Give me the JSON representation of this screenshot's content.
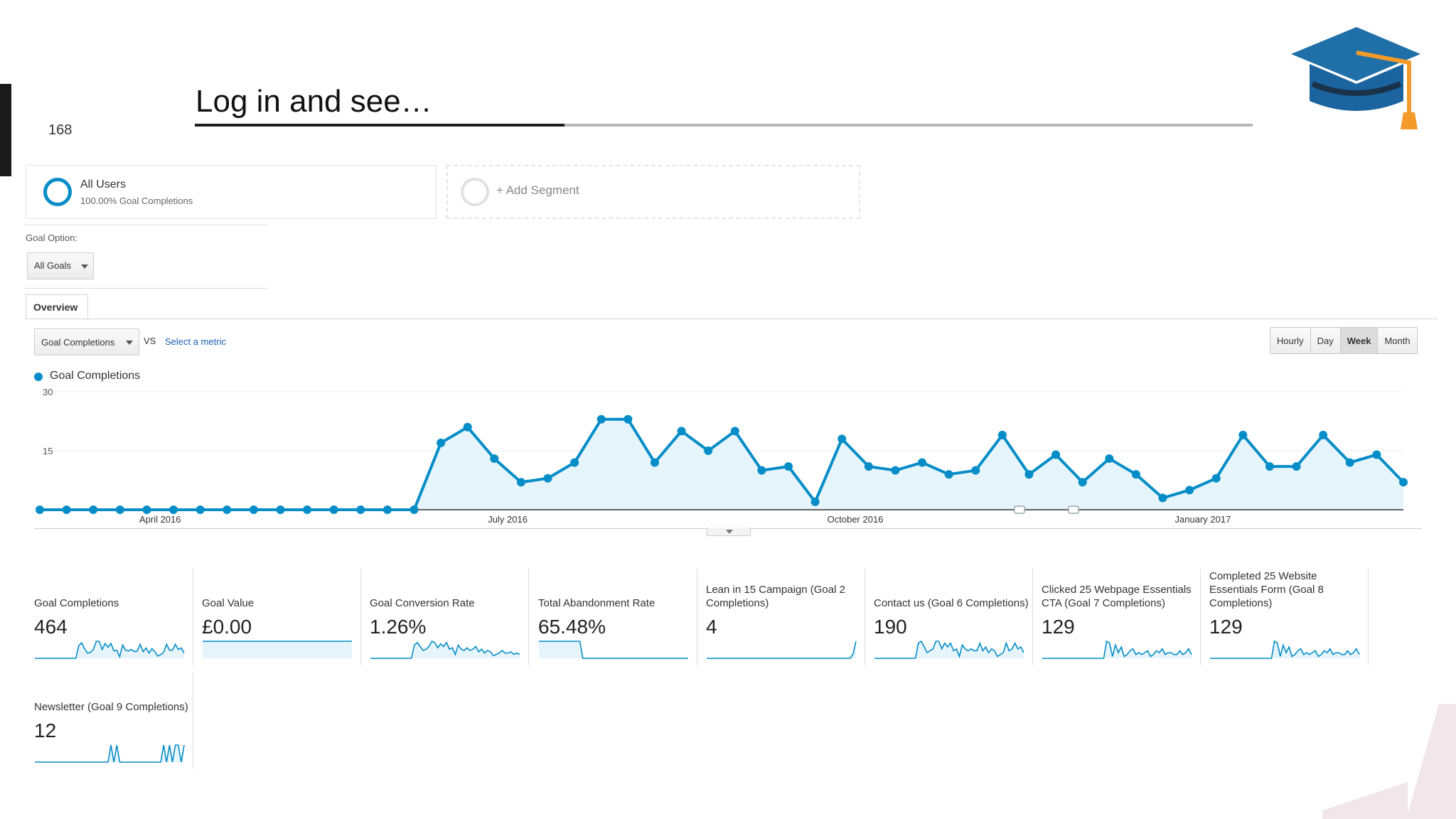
{
  "slide": {
    "number": "168",
    "title": "Log in and see…"
  },
  "segments": {
    "all_users": {
      "name": "All Users",
      "sub": "100.00% Goal Completions"
    },
    "add_segment": "+ Add Segment"
  },
  "goal_option": {
    "label": "Goal Option:",
    "selected": "All Goals"
  },
  "tabs": [
    "Overview"
  ],
  "metric_selector": {
    "selected": "Goal Completions",
    "vs": "VS",
    "select_metric": "Select a metric"
  },
  "time_buttons": [
    "Hourly",
    "Day",
    "Week",
    "Month"
  ],
  "active_time_button": "Week",
  "colors": {
    "series": "#058dc7",
    "area_fill": "#e6f4fb",
    "cap_blue": "#1f6fa8",
    "tassel": "#f39a2b"
  },
  "chart_data": {
    "type": "area",
    "title": "",
    "legend": [
      "Goal Completions"
    ],
    "ylim": [
      0,
      30
    ],
    "y_ticks": [
      "30",
      "15"
    ],
    "x_tick_labels": [
      "April 2016",
      "July 2016",
      "October 2016",
      "January 2017"
    ],
    "x_tick_index": [
      4.5,
      17.5,
      30.5,
      43.5
    ],
    "series": [
      {
        "name": "Goal Completions",
        "values": [
          0,
          0,
          0,
          0,
          0,
          0,
          0,
          0,
          0,
          0,
          0,
          0,
          0,
          0,
          0,
          17,
          21,
          13,
          7,
          8,
          12,
          23,
          23,
          12,
          20,
          15,
          20,
          10,
          11,
          2,
          18,
          11,
          10,
          12,
          9,
          10,
          19,
          9,
          14,
          7,
          13,
          9,
          3,
          5,
          8,
          19,
          11,
          11,
          19,
          12,
          14,
          7
        ]
      }
    ]
  },
  "scorecards": [
    {
      "name": "Goal Completions",
      "value": "464",
      "spark": [
        0,
        0,
        0,
        0,
        0,
        0,
        0,
        0,
        0,
        0,
        0,
        0,
        0,
        0,
        0,
        17,
        21,
        13,
        7,
        8,
        12,
        23,
        23,
        12,
        20,
        15,
        20,
        10,
        11,
        2,
        18,
        11,
        10,
        12,
        9,
        10,
        19,
        9,
        14,
        7,
        13,
        9,
        3,
        5,
        8,
        19,
        11,
        11,
        19,
        12,
        14,
        7
      ]
    },
    {
      "name": "Goal Value",
      "value": "£0.00",
      "spark": [
        5,
        5,
        5,
        5,
        5,
        5,
        5,
        5,
        5,
        5,
        5,
        5,
        5,
        5,
        5,
        5,
        5,
        5,
        5,
        5
      ]
    },
    {
      "name": "Goal Conversion Rate",
      "value": "1.26%",
      "spark": [
        0,
        0,
        0,
        0,
        0,
        0,
        0,
        0,
        0,
        0,
        0,
        0,
        0,
        0,
        0,
        10,
        12,
        9,
        6,
        7,
        9,
        13,
        12,
        8,
        11,
        9,
        12,
        7,
        8,
        3,
        10,
        7,
        6,
        8,
        6,
        7,
        9,
        5,
        7,
        4,
        6,
        5,
        2,
        3,
        4,
        6,
        4,
        4,
        5,
        3,
        4,
        3
      ]
    },
    {
      "name": "Total Abandonment Rate",
      "value": "65.48%",
      "spark": [
        10,
        10,
        10,
        10,
        10,
        10,
        10,
        10,
        10,
        10,
        10,
        10,
        10,
        10,
        10,
        0,
        0,
        0,
        0,
        0,
        0,
        0,
        0,
        0,
        0,
        0,
        0,
        0,
        0,
        0,
        0,
        0,
        0,
        0,
        0,
        0,
        0,
        0,
        0,
        0,
        0,
        0,
        0,
        0,
        0,
        0,
        0,
        0,
        0,
        0,
        0,
        0
      ]
    },
    {
      "name": "Lean in 15 Campaign (Goal 2 Completions)",
      "value": "4",
      "spark": [
        0,
        0,
        0,
        0,
        0,
        0,
        0,
        0,
        0,
        0,
        0,
        0,
        0,
        0,
        0,
        0,
        0,
        0,
        0,
        0,
        0,
        0,
        0,
        0,
        0,
        0,
        0,
        0,
        0,
        0,
        0,
        0,
        0,
        0,
        0,
        0,
        0,
        0,
        0,
        0,
        0,
        0,
        0,
        0,
        0,
        0,
        0,
        0,
        0,
        0,
        1,
        4
      ]
    },
    {
      "name": "Contact us (Goal 6 Completions)",
      "value": "190",
      "spark": [
        0,
        0,
        0,
        0,
        0,
        0,
        0,
        0,
        0,
        0,
        0,
        0,
        0,
        0,
        0,
        8,
        9,
        6,
        3,
        4,
        5,
        9,
        9,
        5,
        8,
        6,
        8,
        4,
        5,
        1,
        7,
        5,
        4,
        5,
        4,
        4,
        8,
        4,
        6,
        3,
        5,
        4,
        1,
        2,
        3,
        8,
        4,
        5,
        8,
        5,
        6,
        3
      ]
    },
    {
      "name": "Clicked 25 Webpage Essentials CTA (Goal 7 Completions)",
      "value": "129",
      "spark": [
        0,
        0,
        0,
        0,
        0,
        0,
        0,
        0,
        0,
        0,
        0,
        0,
        0,
        0,
        0,
        0,
        0,
        0,
        0,
        0,
        0,
        0,
        9,
        8,
        1,
        7,
        3,
        6,
        1,
        2,
        4,
        5,
        2,
        3,
        2,
        3,
        4,
        1,
        2,
        4,
        3,
        5,
        2,
        3,
        3,
        2,
        2,
        4,
        2,
        3,
        5,
        2
      ]
    },
    {
      "name": "Completed 25 Website Essentials Form (Goal 8 Completions)",
      "value": "129",
      "spark": [
        0,
        0,
        0,
        0,
        0,
        0,
        0,
        0,
        0,
        0,
        0,
        0,
        0,
        0,
        0,
        0,
        0,
        0,
        0,
        0,
        0,
        0,
        9,
        8,
        1,
        7,
        3,
        6,
        1,
        2,
        4,
        5,
        2,
        3,
        2,
        3,
        4,
        1,
        2,
        4,
        3,
        5,
        2,
        3,
        3,
        2,
        2,
        4,
        2,
        3,
        5,
        2
      ]
    },
    {
      "name": "Newsletter (Goal 9 Completions)",
      "value": "12",
      "spark": [
        0,
        0,
        0,
        0,
        0,
        0,
        0,
        0,
        0,
        0,
        0,
        0,
        0,
        0,
        0,
        0,
        0,
        0,
        0,
        0,
        0,
        0,
        0,
        0,
        0,
        0,
        5,
        0,
        5,
        0,
        0,
        0,
        0,
        0,
        0,
        0,
        0,
        0,
        0,
        0,
        0,
        0,
        0,
        0,
        5,
        0,
        5,
        0,
        5,
        5,
        0,
        5
      ]
    }
  ]
}
